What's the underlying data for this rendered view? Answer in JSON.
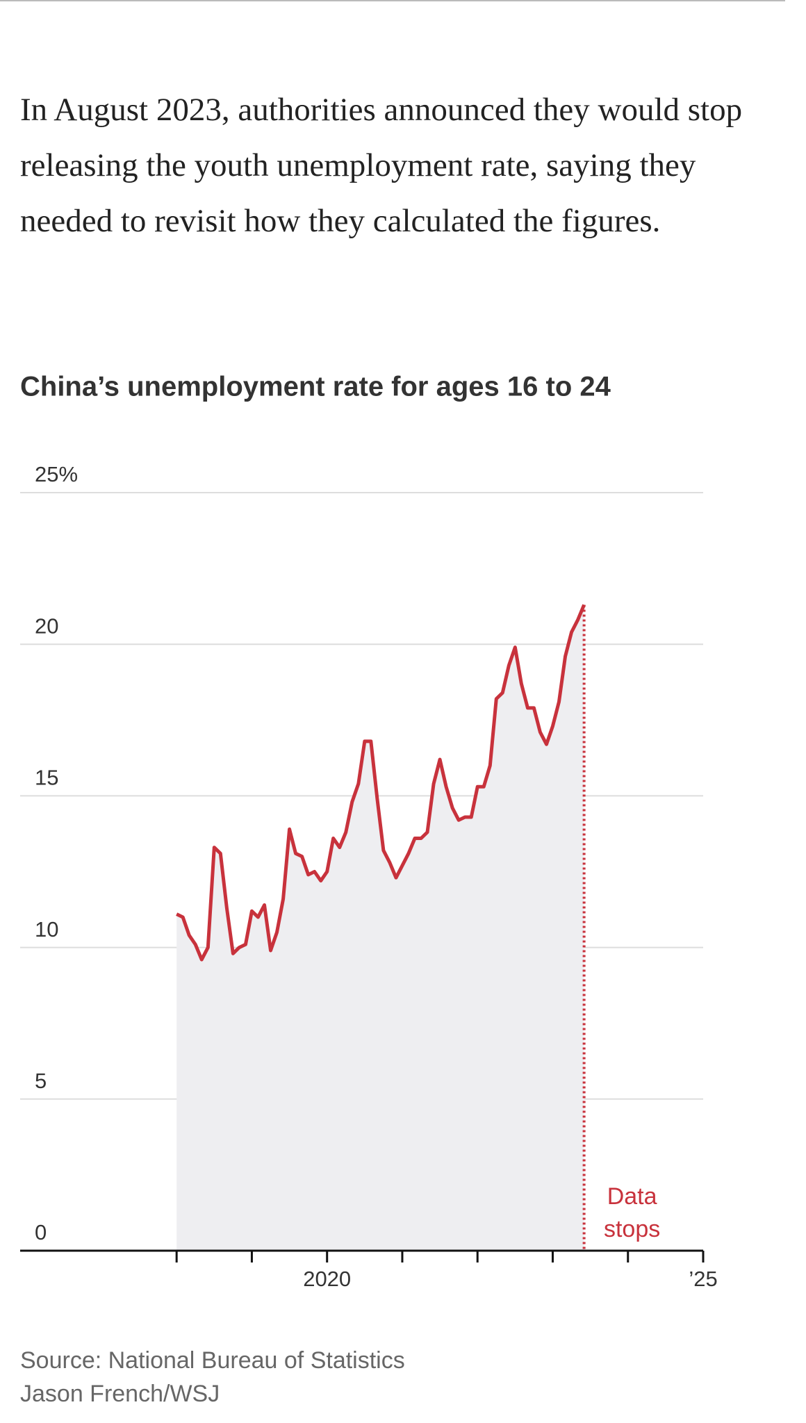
{
  "article": {
    "paragraph": "In August 2023, authorities announced they would stop releasing the youth unemployment rate, saying they needed to revisit how they calculated the figures."
  },
  "chart_data": {
    "type": "area-line",
    "title": "China’s unemployment rate for ages 16 to 24",
    "x": [
      2018,
      2018.083,
      2018.167,
      2018.25,
      2018.333,
      2018.417,
      2018.5,
      2018.583,
      2018.667,
      2018.75,
      2018.833,
      2018.917,
      2019,
      2019.083,
      2019.167,
      2019.25,
      2019.333,
      2019.417,
      2019.5,
      2019.583,
      2019.667,
      2019.75,
      2019.833,
      2019.917,
      2020,
      2020.083,
      2020.167,
      2020.25,
      2020.333,
      2020.417,
      2020.5,
      2020.583,
      2020.667,
      2020.75,
      2020.833,
      2020.917,
      2021,
      2021.083,
      2021.167,
      2021.25,
      2021.333,
      2021.417,
      2021.5,
      2021.583,
      2021.667,
      2021.75,
      2021.833,
      2021.917,
      2022,
      2022.083,
      2022.167,
      2022.25,
      2022.333,
      2022.417,
      2022.5,
      2022.583,
      2022.667,
      2022.75,
      2022.833,
      2022.917,
      2023,
      2023.083,
      2023.167,
      2023.25,
      2023.333,
      2023.417
    ],
    "series": [
      {
        "color": "#c8323c",
        "fill": "#eeeef1",
        "values": [
          11.1,
          11.0,
          10.4,
          10.1,
          9.6,
          10.0,
          13.3,
          13.1,
          11.3,
          9.8,
          10.0,
          10.1,
          11.2,
          11.0,
          11.4,
          9.9,
          10.5,
          11.6,
          13.9,
          13.1,
          13.0,
          12.4,
          12.5,
          12.2,
          12.5,
          13.6,
          13.3,
          13.8,
          14.8,
          15.4,
          16.8,
          16.8,
          14.9,
          13.2,
          12.8,
          12.3,
          12.7,
          13.1,
          13.6,
          13.6,
          13.8,
          15.4,
          16.2,
          15.3,
          14.6,
          14.2,
          14.3,
          14.3,
          15.3,
          15.3,
          16.0,
          18.2,
          18.4,
          19.3,
          19.9,
          18.7,
          17.9,
          17.9,
          17.1,
          16.7,
          17.3,
          18.1,
          19.6,
          20.4,
          20.8,
          21.3
        ]
      }
    ],
    "xlim": [
      2015.92,
      2025
    ],
    "xticks": [
      {
        "value": 2018,
        "label": null
      },
      {
        "value": 2019,
        "label": null
      },
      2020,
      {
        "value": 2021,
        "label": null
      },
      {
        "value": 2022,
        "label": null
      },
      {
        "value": 2023,
        "label": null
      },
      {
        "value": 2024,
        "label": null
      },
      {
        "value": 2025,
        "label": "’25"
      }
    ],
    "ylim": [
      0,
      25
    ],
    "yticks": [
      0,
      5,
      10,
      15,
      {
        "value": 25,
        "label": "25%"
      },
      20
    ],
    "grid": true,
    "annotation": {
      "lines": [
        "Data",
        "stops"
      ],
      "x": 2023.417,
      "color": "#c8323c"
    },
    "source": "Source: National Bureau of Statistics",
    "credit": "Jason French/WSJ"
  }
}
